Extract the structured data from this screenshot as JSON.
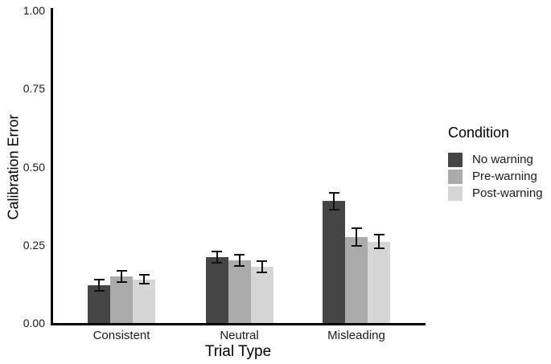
{
  "chart_data": {
    "type": "bar",
    "title": "",
    "xlabel": "Trial Type",
    "ylabel": "Calibration Error",
    "categories": [
      "Consistent",
      "Neutral",
      "Misleading"
    ],
    "series": [
      {
        "name": "No warning",
        "color": "#454545",
        "values": [
          0.12,
          0.21,
          0.39
        ],
        "errors": [
          0.018,
          0.018,
          0.027
        ]
      },
      {
        "name": "Pre-warning",
        "color": "#ABABAB",
        "values": [
          0.15,
          0.2,
          0.275
        ],
        "errors": [
          0.018,
          0.018,
          0.028
        ]
      },
      {
        "name": "Post-warning",
        "color": "#D6D6D6",
        "values": [
          0.14,
          0.18,
          0.26
        ],
        "errors": [
          0.015,
          0.018,
          0.022
        ]
      }
    ],
    "ylim": [
      0,
      1
    ],
    "yticks": [
      {
        "value": 1.0,
        "label": "1.00"
      },
      {
        "value": 0.75,
        "label": "0.75"
      },
      {
        "value": 0.5,
        "label": "0.50"
      },
      {
        "value": 0.25,
        "label": "0.25"
      },
      {
        "value": 0.0,
        "label": "0.00"
      }
    ],
    "legend_title": "Condition",
    "legend_position": "right",
    "grid": false,
    "error_bar_color": "#111111",
    "axis_color": "#000000"
  }
}
